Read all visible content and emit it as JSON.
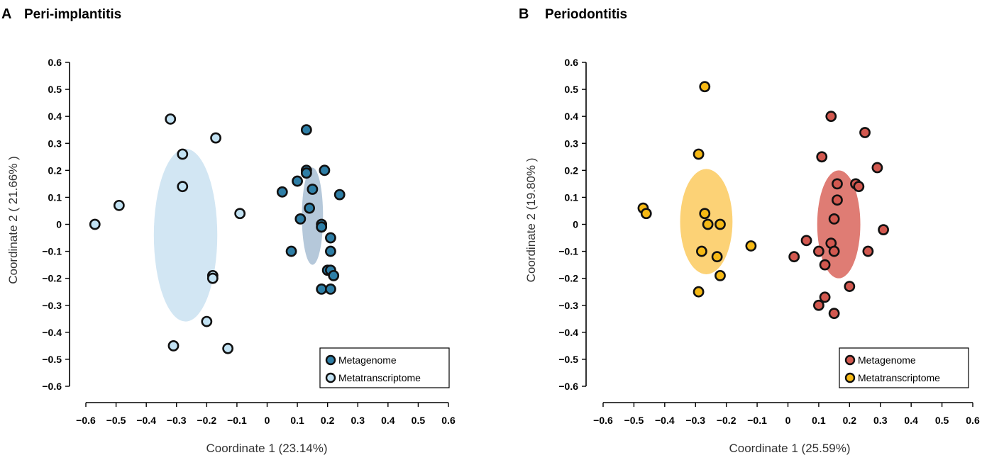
{
  "chart_data": [
    {
      "type": "scatter",
      "panel_letter": "A",
      "title": "Peri-implantitis",
      "xlabel": "Coordinate 1 (23.14%)",
      "ylabel": "Coordinate 2 ( 21.66% )",
      "xlim": [
        -0.6,
        0.6
      ],
      "ylim": [
        -0.6,
        0.6
      ],
      "x_ticks": [
        -0.6,
        -0.5,
        -0.4,
        -0.3,
        -0.2,
        -0.1,
        0,
        0.1,
        0.2,
        0.3,
        0.4,
        0.5,
        0.6
      ],
      "x_tick_labels": [
        "−0.6",
        "−0.5",
        "−0.4",
        "−0.3",
        "−0.2",
        "−0.1",
        "0",
        "0.1",
        "0.2",
        "0.3",
        "0.4",
        "0.5",
        "0.6"
      ],
      "y_ticks": [
        0.6,
        0.5,
        0.4,
        0.3,
        0.2,
        0.1,
        0,
        -0.1,
        -0.2,
        -0.3,
        -0.4,
        -0.5,
        -0.6
      ],
      "y_tick_labels": [
        "0.6",
        "0.5",
        "0.4",
        "0.3",
        "0.2",
        "0.1",
        "0",
        "−0.1",
        "−0.2",
        "−0.3",
        "−0.4",
        "−0.5",
        "−0.6"
      ],
      "legend_position": "bottom-right",
      "series": [
        {
          "name": "Metagenome",
          "color": "#2e7ea6",
          "ellipse": {
            "cx": 0.15,
            "cy": 0.03,
            "rx": 0.035,
            "ry": 0.18,
            "color": "#b5c8da"
          },
          "points": [
            [
              0.13,
              0.35
            ],
            [
              0.13,
              0.2
            ],
            [
              0.13,
              0.19
            ],
            [
              0.19,
              0.2
            ],
            [
              0.1,
              0.16
            ],
            [
              0.15,
              0.13
            ],
            [
              0.05,
              0.12
            ],
            [
              0.24,
              0.11
            ],
            [
              0.14,
              0.06
            ],
            [
              0.11,
              0.02
            ],
            [
              0.18,
              0.0
            ],
            [
              0.18,
              -0.01
            ],
            [
              0.21,
              -0.05
            ],
            [
              0.21,
              -0.1
            ],
            [
              0.08,
              -0.1
            ],
            [
              0.2,
              -0.17
            ],
            [
              0.21,
              -0.17
            ],
            [
              0.22,
              -0.19
            ],
            [
              0.18,
              -0.24
            ],
            [
              0.21,
              -0.24
            ]
          ]
        },
        {
          "name": "Metatranscriptome",
          "color": "#c2e2f3",
          "ellipse": {
            "cx": -0.27,
            "cy": -0.04,
            "rx": 0.105,
            "ry": 0.32,
            "color": "#d2e6f3"
          },
          "points": [
            [
              -0.32,
              0.39
            ],
            [
              -0.17,
              0.32
            ],
            [
              -0.28,
              0.26
            ],
            [
              -0.28,
              0.14
            ],
            [
              -0.49,
              0.07
            ],
            [
              -0.09,
              0.04
            ],
            [
              -0.57,
              0.0
            ],
            [
              -0.18,
              -0.19
            ],
            [
              -0.18,
              -0.2
            ],
            [
              -0.2,
              -0.36
            ],
            [
              -0.31,
              -0.45
            ],
            [
              -0.13,
              -0.46
            ]
          ]
        }
      ]
    },
    {
      "type": "scatter",
      "panel_letter": "B",
      "title": "Periodontitis",
      "xlabel": "Coordinate 1 (25.59%)",
      "ylabel": "Coordinate 2 (19.80% )",
      "xlim": [
        -0.6,
        0.6
      ],
      "ylim": [
        -0.6,
        0.6
      ],
      "x_ticks": [
        -0.6,
        -0.5,
        -0.4,
        -0.3,
        -0.2,
        -0.1,
        0,
        0.1,
        0.2,
        0.3,
        0.4,
        0.5,
        0.6
      ],
      "x_tick_labels": [
        "−0.6",
        "−0.5",
        "−0.4",
        "−0.3",
        "−0.2",
        "−0.1",
        "0",
        "0.1",
        "0.2",
        "0.3",
        "0.4",
        "0.5",
        "0.6"
      ],
      "y_ticks": [
        0.6,
        0.5,
        0.4,
        0.3,
        0.2,
        0.1,
        0,
        -0.1,
        -0.2,
        -0.3,
        -0.4,
        -0.5,
        -0.6
      ],
      "y_tick_labels": [
        "0.6",
        "0.5",
        "0.4",
        "0.3",
        "0.2",
        "0.1",
        "0",
        "−0.1",
        "−0.2",
        "−0.3",
        "−0.4",
        "−0.5",
        "−0.6"
      ],
      "legend_position": "bottom-right",
      "series": [
        {
          "name": "Metagenome",
          "color": "#d2584f",
          "ellipse": {
            "cx": 0.165,
            "cy": 0.0,
            "rx": 0.07,
            "ry": 0.2,
            "color": "#df7c74"
          },
          "points": [
            [
              0.14,
              0.4
            ],
            [
              0.25,
              0.34
            ],
            [
              0.11,
              0.25
            ],
            [
              0.29,
              0.21
            ],
            [
              0.22,
              0.15
            ],
            [
              0.16,
              0.15
            ],
            [
              0.23,
              0.14
            ],
            [
              0.16,
              0.09
            ],
            [
              0.15,
              0.02
            ],
            [
              0.31,
              -0.02
            ],
            [
              0.06,
              -0.06
            ],
            [
              0.14,
              -0.07
            ],
            [
              0.1,
              -0.1
            ],
            [
              0.15,
              -0.1
            ],
            [
              0.26,
              -0.1
            ],
            [
              0.02,
              -0.12
            ],
            [
              0.12,
              -0.15
            ],
            [
              0.2,
              -0.23
            ],
            [
              0.12,
              -0.27
            ],
            [
              0.1,
              -0.3
            ],
            [
              0.15,
              -0.33
            ]
          ]
        },
        {
          "name": "Metatranscriptome",
          "color": "#f6b914",
          "ellipse": {
            "cx": -0.265,
            "cy": 0.01,
            "rx": 0.085,
            "ry": 0.195,
            "color": "#fcd276"
          },
          "points": [
            [
              -0.27,
              0.51
            ],
            [
              -0.29,
              0.26
            ],
            [
              -0.47,
              0.06
            ],
            [
              -0.46,
              0.04
            ],
            [
              -0.27,
              0.04
            ],
            [
              -0.26,
              0.0
            ],
            [
              -0.22,
              0.0
            ],
            [
              -0.12,
              -0.08
            ],
            [
              -0.28,
              -0.1
            ],
            [
              -0.23,
              -0.12
            ],
            [
              -0.22,
              -0.19
            ],
            [
              -0.29,
              -0.25
            ]
          ]
        }
      ]
    }
  ]
}
